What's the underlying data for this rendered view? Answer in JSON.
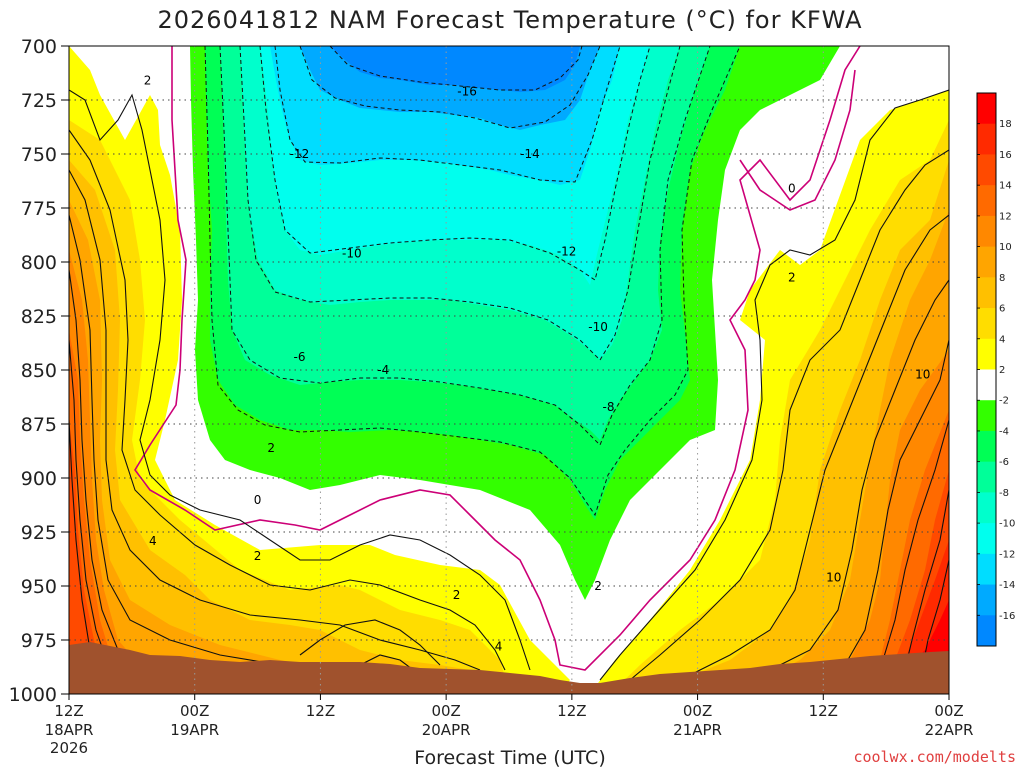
{
  "title": "2026041812 NAM Forecast Temperature (°C) for KFWA",
  "credit": "coolwx.com/modelts",
  "chart_data": {
    "type": "heatmap",
    "title": "2026041812 NAM Forecast Temperature (°C) for KFWA",
    "xlabel": "Forecast Time (UTC)",
    "ylabel": "",
    "y_axis": {
      "ticks": [
        700,
        725,
        750,
        775,
        800,
        825,
        850,
        875,
        900,
        925,
        950,
        975,
        1000
      ],
      "range": [
        700,
        1000
      ],
      "inverted": true
    },
    "x_axis": {
      "range_hours": [
        0,
        84
      ],
      "ticks": [
        {
          "hour": 0,
          "label": "12Z",
          "line2": "18APR",
          "line3": "2026"
        },
        {
          "hour": 12,
          "label": "00Z",
          "line2": "19APR",
          "line3": ""
        },
        {
          "hour": 24,
          "label": "12Z",
          "line2": "",
          "line3": ""
        },
        {
          "hour": 36,
          "label": "00Z",
          "line2": "20APR",
          "line3": ""
        },
        {
          "hour": 48,
          "label": "12Z",
          "line2": "",
          "line3": ""
        },
        {
          "hour": 60,
          "label": "00Z",
          "line2": "21APR",
          "line3": ""
        },
        {
          "hour": 72,
          "label": "12Z",
          "line2": "",
          "line3": ""
        },
        {
          "hour": 84,
          "label": "00Z",
          "line2": "22APR",
          "line3": ""
        }
      ]
    },
    "grid": true,
    "colorbar": {
      "placement": "right",
      "labels": [
        "18",
        "16",
        "14",
        "12",
        "10",
        "8",
        "6",
        "4",
        "2",
        "-2",
        "-4",
        "-6",
        "-8",
        "-10",
        "-12",
        "-14",
        "-16"
      ],
      "bins": [
        {
          "lo": 18,
          "hi": 20,
          "color": "#ff0000"
        },
        {
          "lo": 16,
          "hi": 18,
          "color": "#ff2a00"
        },
        {
          "lo": 14,
          "hi": 16,
          "color": "#ff4a00"
        },
        {
          "lo": 12,
          "hi": 14,
          "color": "#ff6a00"
        },
        {
          "lo": 10,
          "hi": 12,
          "color": "#ff8800"
        },
        {
          "lo": 8,
          "hi": 10,
          "color": "#ffa500"
        },
        {
          "lo": 6,
          "hi": 8,
          "color": "#ffc000"
        },
        {
          "lo": 4,
          "hi": 6,
          "color": "#ffdd00"
        },
        {
          "lo": 2,
          "hi": 4,
          "color": "#ffff00"
        },
        {
          "lo": -2,
          "hi": 2,
          "color": "#ffffff"
        },
        {
          "lo": -4,
          "hi": -2,
          "color": "#33ff00"
        },
        {
          "lo": -6,
          "hi": -4,
          "color": "#00ff55"
        },
        {
          "lo": -8,
          "hi": -6,
          "color": "#00ff99"
        },
        {
          "lo": -10,
          "hi": -8,
          "color": "#00ffcc"
        },
        {
          "lo": -12,
          "hi": -10,
          "color": "#00ffee"
        },
        {
          "lo": -14,
          "hi": -12,
          "color": "#00ddff"
        },
        {
          "lo": -16,
          "hi": -14,
          "color": "#00aaff"
        },
        {
          "lo": -18,
          "hi": -16,
          "color": "#0088ff"
        }
      ]
    },
    "ground_color": "#a0522d",
    "contour_labels": [
      {
        "text": "2",
        "hour": 7.5,
        "p": 717
      },
      {
        "text": "-16",
        "hour": 38,
        "p": 722
      },
      {
        "text": "-12",
        "hour": 22,
        "p": 751
      },
      {
        "text": "-14",
        "hour": 44,
        "p": 751
      },
      {
        "text": "0",
        "hour": 69,
        "p": 767
      },
      {
        "text": "-10",
        "hour": 27,
        "p": 797
      },
      {
        "text": "-12",
        "hour": 47.5,
        "p": 796
      },
      {
        "text": "2",
        "hour": 69,
        "p": 808
      },
      {
        "text": "-10",
        "hour": 50.5,
        "p": 831
      },
      {
        "text": "-6",
        "hour": 22,
        "p": 845
      },
      {
        "text": "-4",
        "hour": 30,
        "p": 851
      },
      {
        "text": "10",
        "hour": 81.5,
        "p": 853
      },
      {
        "text": "-8",
        "hour": 51.5,
        "p": 868
      },
      {
        "text": "2",
        "hour": 19.3,
        "p": 887
      },
      {
        "text": "0",
        "hour": 18,
        "p": 911
      },
      {
        "text": "4",
        "hour": 8,
        "p": 930
      },
      {
        "text": "2",
        "hour": 18,
        "p": 937
      },
      {
        "text": "10",
        "hour": 73,
        "p": 947
      },
      {
        "text": "2",
        "hour": 37,
        "p": 955
      },
      {
        "text": "2",
        "hour": 50.5,
        "p": 951
      },
      {
        "text": "4",
        "hour": 41,
        "p": 979
      }
    ]
  }
}
